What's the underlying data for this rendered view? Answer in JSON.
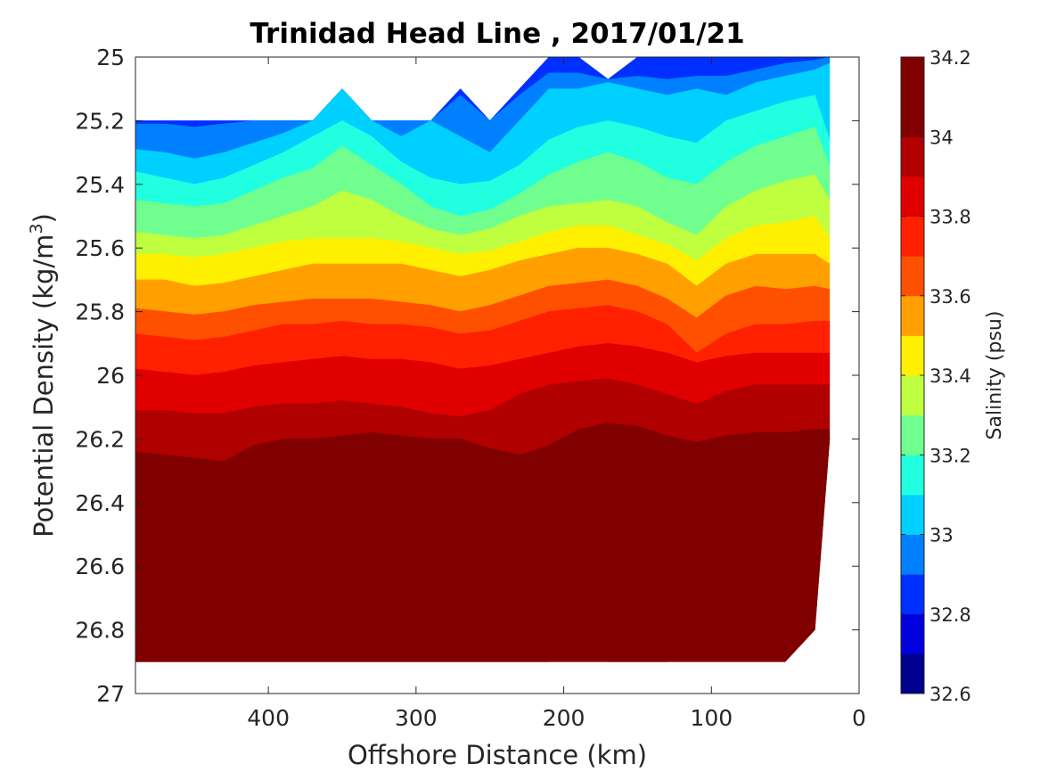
{
  "chart_data": {
    "type": "heatmap",
    "subtype": "filled-contour",
    "title": "Trinidad Head Line , 2017/01/21",
    "xlabel": "Offshore Distance (km)",
    "ylabel_main": "Potential Density (kg/m",
    "ylabel_sup": "3",
    "ylabel_close": ")",
    "xlim": [
      490,
      0
    ],
    "x_reversed": true,
    "ylim": [
      25,
      27
    ],
    "y_reversed": true,
    "x_ticks": [
      400,
      300,
      200,
      100,
      0
    ],
    "y_ticks": [
      25,
      25.2,
      25.4,
      25.6,
      25.8,
      26,
      26.2,
      26.4,
      26.6,
      26.8,
      27
    ],
    "y_tick_labels": [
      "25",
      "25.2",
      "25.4",
      "25.6",
      "25.8",
      "26",
      "26.2",
      "26.4",
      "26.6",
      "26.8",
      "27"
    ],
    "colorbar": {
      "label": "Salinity (psu)",
      "range": [
        32.6,
        34.2
      ],
      "step": 0.1,
      "ticks": [
        32.6,
        32.8,
        33,
        33.2,
        33.4,
        33.6,
        33.8,
        34,
        34.2
      ],
      "tick_labels": [
        "32.6",
        "32.8",
        "33",
        "33.2",
        "33.4",
        "33.6",
        "33.8",
        "34",
        "34.2"
      ],
      "colormap": "jet",
      "colors": [
        "#00008f",
        "#0000df",
        "#0030ff",
        "#0080ff",
        "#00d0ff",
        "#20ffdf",
        "#70ff8f",
        "#bfff40",
        "#ffef00",
        "#ffa000",
        "#ff5000",
        "#ff2000",
        "#e00000",
        "#b00000",
        "#800000",
        "#800000"
      ]
    },
    "stations_x": [
      490,
      470,
      450,
      430,
      410,
      390,
      370,
      350,
      330,
      310,
      290,
      270,
      250,
      230,
      210,
      190,
      170,
      150,
      130,
      110,
      90,
      70,
      50,
      30,
      20
    ],
    "isohalines": [
      {
        "salinity": 32.9,
        "y": [
          25.21,
          25.21,
          25.22,
          25.21,
          25.2,
          25.2,
          25.19,
          25.18,
          25.2,
          25.2,
          25.2,
          25.12,
          25.19,
          25.12,
          25.05,
          25.05,
          25.06,
          25.06,
          25.07,
          25.06,
          25.06,
          25.04,
          25.02,
          25.01,
          25.0
        ]
      },
      {
        "salinity": 33.0,
        "y": [
          25.29,
          25.3,
          25.32,
          25.3,
          25.27,
          25.24,
          25.2,
          25.1,
          25.17,
          25.25,
          25.2,
          25.25,
          25.3,
          25.2,
          25.1,
          25.1,
          25.08,
          25.1,
          25.12,
          25.1,
          25.12,
          25.08,
          25.06,
          25.04,
          25.02
        ]
      },
      {
        "salinity": 33.1,
        "y": [
          25.36,
          25.38,
          25.4,
          25.38,
          25.34,
          25.3,
          25.25,
          25.2,
          25.25,
          25.33,
          25.38,
          25.4,
          25.39,
          25.34,
          25.26,
          25.22,
          25.2,
          25.22,
          25.25,
          25.27,
          25.2,
          25.17,
          25.14,
          25.12,
          25.26
        ]
      },
      {
        "salinity": 33.2,
        "y": [
          25.45,
          25.46,
          25.47,
          25.46,
          25.42,
          25.38,
          25.35,
          25.28,
          25.34,
          25.4,
          25.47,
          25.5,
          25.48,
          25.43,
          25.37,
          25.33,
          25.3,
          25.33,
          25.38,
          25.4,
          25.33,
          25.28,
          25.25,
          25.22,
          25.34
        ]
      },
      {
        "salinity": 33.3,
        "y": [
          25.55,
          25.56,
          25.57,
          25.56,
          25.53,
          25.5,
          25.47,
          25.42,
          25.45,
          25.5,
          25.54,
          25.56,
          25.54,
          25.5,
          25.47,
          25.46,
          25.45,
          25.47,
          25.52,
          25.56,
          25.47,
          25.42,
          25.39,
          25.37,
          25.45
        ]
      },
      {
        "salinity": 33.4,
        "y": [
          25.62,
          25.62,
          25.63,
          25.62,
          25.6,
          25.58,
          25.57,
          25.57,
          25.57,
          25.58,
          25.6,
          25.62,
          25.61,
          25.58,
          25.55,
          25.53,
          25.53,
          25.56,
          25.59,
          25.64,
          25.57,
          25.53,
          25.52,
          25.5,
          25.57
        ]
      },
      {
        "salinity": 33.5,
        "y": [
          25.7,
          25.7,
          25.72,
          25.71,
          25.69,
          25.67,
          25.65,
          25.65,
          25.65,
          25.65,
          25.67,
          25.69,
          25.67,
          25.64,
          25.62,
          25.6,
          25.6,
          25.62,
          25.65,
          25.72,
          25.65,
          25.62,
          25.62,
          25.62,
          25.65
        ]
      },
      {
        "salinity": 33.6,
        "y": [
          25.79,
          25.8,
          25.81,
          25.8,
          25.78,
          25.77,
          25.76,
          25.76,
          25.76,
          25.77,
          25.78,
          25.8,
          25.78,
          25.75,
          25.72,
          25.71,
          25.7,
          25.72,
          25.76,
          25.82,
          25.75,
          25.72,
          25.73,
          25.72,
          25.73
        ]
      },
      {
        "salinity": 33.7,
        "y": [
          25.87,
          25.88,
          25.89,
          25.88,
          25.86,
          25.84,
          25.84,
          25.83,
          25.84,
          25.84,
          25.85,
          25.87,
          25.86,
          25.83,
          25.8,
          25.79,
          25.78,
          25.8,
          25.84,
          25.93,
          25.87,
          25.84,
          25.84,
          25.83,
          25.83
        ]
      },
      {
        "salinity": 33.8,
        "y": [
          25.98,
          25.99,
          26.0,
          25.99,
          25.97,
          25.96,
          25.95,
          25.94,
          25.95,
          25.95,
          25.96,
          25.98,
          25.97,
          25.95,
          25.93,
          25.91,
          25.9,
          25.91,
          25.93,
          25.96,
          25.94,
          25.93,
          25.93,
          25.93,
          25.93
        ]
      },
      {
        "salinity": 33.9,
        "y": [
          26.11,
          26.11,
          26.12,
          26.12,
          26.1,
          26.09,
          26.09,
          26.08,
          26.09,
          26.1,
          26.12,
          26.13,
          26.11,
          26.06,
          26.03,
          26.02,
          26.01,
          26.03,
          26.06,
          26.09,
          26.05,
          26.03,
          26.03,
          26.03,
          26.03
        ]
      },
      {
        "salinity": 34.0,
        "y": [
          26.24,
          26.25,
          26.26,
          26.27,
          26.22,
          26.2,
          26.2,
          26.19,
          26.18,
          26.19,
          26.2,
          26.2,
          26.23,
          26.25,
          26.22,
          26.17,
          26.15,
          26.16,
          26.19,
          26.21,
          26.19,
          26.18,
          26.18,
          26.17,
          26.17
        ]
      },
      {
        "salinity": 34.1,
        "y": [
          26.44,
          26.46,
          26.47,
          26.46,
          26.41,
          26.37,
          26.36,
          26.32,
          26.3,
          26.37,
          26.39,
          26.39,
          26.4,
          26.41,
          26.42,
          26.34,
          26.31,
          26.31,
          26.3,
          26.36,
          26.32,
          26.35,
          26.37,
          26.33,
          26.33
        ]
      },
      {
        "salinity": 34.2,
        "y": [
          26.84,
          26.8,
          26.76,
          26.85,
          26.86,
          26.86,
          26.87,
          26.86,
          26.86,
          26.86,
          26.86,
          26.86,
          26.76,
          26.79,
          26.68,
          26.6,
          26.61,
          26.6,
          26.63,
          26.62,
          26.62,
          26.64,
          26.68,
          26.7,
          26.7
        ]
      },
      {
        "salinity": 34.3,
        "y": [
          26.9,
          26.9,
          26.9,
          26.9,
          26.9,
          26.9,
          26.9,
          26.9,
          26.9,
          26.9,
          26.9,
          26.9,
          26.9,
          26.9,
          26.9,
          26.89,
          26.9,
          26.9,
          26.9,
          26.89,
          26.87,
          26.86,
          26.87,
          26.87,
          26.87
        ]
      }
    ],
    "data_top_y": [
      25.2,
      25.2,
      25.2,
      25.2,
      25.2,
      25.2,
      25.2,
      25.1,
      25.2,
      25.2,
      25.2,
      25.1,
      25.2,
      25.1,
      25.0,
      25.0,
      25.07,
      25.0,
      25.0,
      25.0,
      25.0,
      25.0,
      25.0,
      25.0,
      25.0
    ],
    "data_bottom_y": [
      26.9,
      26.9,
      26.9,
      26.9,
      26.9,
      26.9,
      26.9,
      26.9,
      26.9,
      26.9,
      26.9,
      26.9,
      26.9,
      26.9,
      26.9,
      26.9,
      26.9,
      26.9,
      26.9,
      26.9,
      26.9,
      26.9,
      26.9,
      26.8,
      26.2
    ],
    "colors": {
      "axis": "#262626",
      "background": "#ffffff"
    }
  }
}
